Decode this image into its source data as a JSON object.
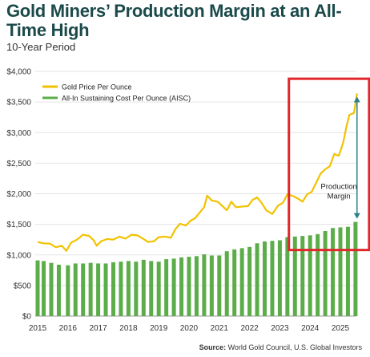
{
  "title": "Gold Miners’ Production Margin at an All-Time High",
  "subtitle": "10-Year Period",
  "source_label": "Source:",
  "source_text": "World Gold Council, U.S. Global Investors",
  "colors": {
    "gold": "#f2c200",
    "aisc": "#5cad4a",
    "highlight_box": "#e0262b",
    "arrow": "#2e7f8c",
    "title": "#1c4a4a"
  },
  "chart_data": {
    "type": "line+bar",
    "title": "Gold Miners’ Production Margin at an All-Time High",
    "subtitle": "10-Year Period",
    "xlabel": "",
    "ylabel": "",
    "ylim": [
      0,
      4000
    ],
    "xlim": [
      2015,
      2025.5
    ],
    "grid": "horizontal",
    "legend_position": "top-left",
    "y_ticks": [
      "$0",
      "$500",
      "$1,000",
      "$1,500",
      "$2,000",
      "$2,500",
      "$3,000",
      "$3,500",
      "$4,000"
    ],
    "y_tick_values": [
      0,
      500,
      1000,
      1500,
      2000,
      2500,
      3000,
      3500,
      4000
    ],
    "x_ticks": [
      "2015",
      "2016",
      "2017",
      "2018",
      "2019",
      "2020",
      "2021",
      "2022",
      "2023",
      "2024",
      "2025"
    ],
    "x_tick_values": [
      2015,
      2016,
      2017,
      2018,
      2019,
      2020,
      2021,
      2022,
      2023,
      2024,
      2025
    ],
    "series": [
      {
        "name": "Gold Price Per Ounce",
        "type": "line",
        "color": "#f2c200",
        "points": [
          [
            2015.0,
            1210
          ],
          [
            2015.2,
            1190
          ],
          [
            2015.4,
            1185
          ],
          [
            2015.6,
            1125
          ],
          [
            2015.8,
            1150
          ],
          [
            2015.95,
            1065
          ],
          [
            2016.1,
            1200
          ],
          [
            2016.3,
            1250
          ],
          [
            2016.5,
            1330
          ],
          [
            2016.7,
            1310
          ],
          [
            2016.85,
            1240
          ],
          [
            2016.95,
            1150
          ],
          [
            2017.1,
            1225
          ],
          [
            2017.3,
            1260
          ],
          [
            2017.5,
            1250
          ],
          [
            2017.7,
            1300
          ],
          [
            2017.9,
            1265
          ],
          [
            2018.1,
            1330
          ],
          [
            2018.3,
            1320
          ],
          [
            2018.5,
            1260
          ],
          [
            2018.65,
            1210
          ],
          [
            2018.85,
            1225
          ],
          [
            2019.0,
            1290
          ],
          [
            2019.2,
            1300
          ],
          [
            2019.4,
            1280
          ],
          [
            2019.55,
            1420
          ],
          [
            2019.7,
            1510
          ],
          [
            2019.9,
            1480
          ],
          [
            2020.05,
            1560
          ],
          [
            2020.2,
            1600
          ],
          [
            2020.35,
            1690
          ],
          [
            2020.5,
            1780
          ],
          [
            2020.6,
            1970
          ],
          [
            2020.75,
            1890
          ],
          [
            2020.95,
            1870
          ],
          [
            2021.1,
            1800
          ],
          [
            2021.25,
            1730
          ],
          [
            2021.4,
            1870
          ],
          [
            2021.55,
            1780
          ],
          [
            2021.75,
            1790
          ],
          [
            2021.95,
            1800
          ],
          [
            2022.1,
            1900
          ],
          [
            2022.25,
            1940
          ],
          [
            2022.4,
            1850
          ],
          [
            2022.55,
            1730
          ],
          [
            2022.75,
            1670
          ],
          [
            2022.95,
            1810
          ],
          [
            2023.1,
            1850
          ],
          [
            2023.25,
            1990
          ],
          [
            2023.45,
            1960
          ],
          [
            2023.6,
            1920
          ],
          [
            2023.75,
            1870
          ],
          [
            2023.9,
            1990
          ],
          [
            2024.05,
            2030
          ],
          [
            2024.2,
            2180
          ],
          [
            2024.35,
            2330
          ],
          [
            2024.5,
            2400
          ],
          [
            2024.65,
            2450
          ],
          [
            2024.8,
            2650
          ],
          [
            2024.95,
            2620
          ],
          [
            2025.1,
            2850
          ],
          [
            2025.2,
            3100
          ],
          [
            2025.3,
            3290
          ],
          [
            2025.45,
            3320
          ],
          [
            2025.55,
            3640
          ]
        ]
      },
      {
        "name": "All-In Sustaining Cost Per Ounce (AISC)",
        "type": "bar",
        "color": "#5cad4a",
        "points": [
          [
            2015.0,
            910
          ],
          [
            2015.2,
            900
          ],
          [
            2015.45,
            870
          ],
          [
            2015.7,
            840
          ],
          [
            2016.0,
            830
          ],
          [
            2016.25,
            860
          ],
          [
            2016.5,
            860
          ],
          [
            2016.75,
            870
          ],
          [
            2017.0,
            860
          ],
          [
            2017.25,
            860
          ],
          [
            2017.5,
            880
          ],
          [
            2017.75,
            890
          ],
          [
            2018.0,
            900
          ],
          [
            2018.25,
            890
          ],
          [
            2018.5,
            920
          ],
          [
            2018.75,
            900
          ],
          [
            2019.0,
            890
          ],
          [
            2019.25,
            930
          ],
          [
            2019.5,
            940
          ],
          [
            2019.75,
            960
          ],
          [
            2020.0,
            970
          ],
          [
            2020.25,
            980
          ],
          [
            2020.5,
            1010
          ],
          [
            2020.75,
            990
          ],
          [
            2021.0,
            990
          ],
          [
            2021.25,
            1060
          ],
          [
            2021.5,
            1090
          ],
          [
            2021.75,
            1110
          ],
          [
            2022.0,
            1130
          ],
          [
            2022.25,
            1190
          ],
          [
            2022.5,
            1220
          ],
          [
            2022.75,
            1230
          ],
          [
            2023.0,
            1240
          ],
          [
            2023.25,
            1290
          ],
          [
            2023.5,
            1300
          ],
          [
            2023.75,
            1310
          ],
          [
            2024.0,
            1320
          ],
          [
            2024.25,
            1340
          ],
          [
            2024.5,
            1390
          ],
          [
            2024.75,
            1440
          ],
          [
            2025.0,
            1450
          ],
          [
            2025.25,
            1460
          ],
          [
            2025.5,
            1540
          ]
        ]
      }
    ],
    "annotations": [
      {
        "text": "Production Margin",
        "lines": [
          "Production",
          "Margin"
        ],
        "x": 2024.95,
        "y": 2000
      }
    ],
    "highlight_region": {
      "x_range": [
        2023.3,
        2025.95
      ],
      "y_range": [
        1080,
        3880
      ],
      "color": "#e0262b"
    },
    "arrow": {
      "x": 2025.55,
      "y_from": 1540,
      "y_to": 3640,
      "color": "#2e7f8c"
    }
  }
}
